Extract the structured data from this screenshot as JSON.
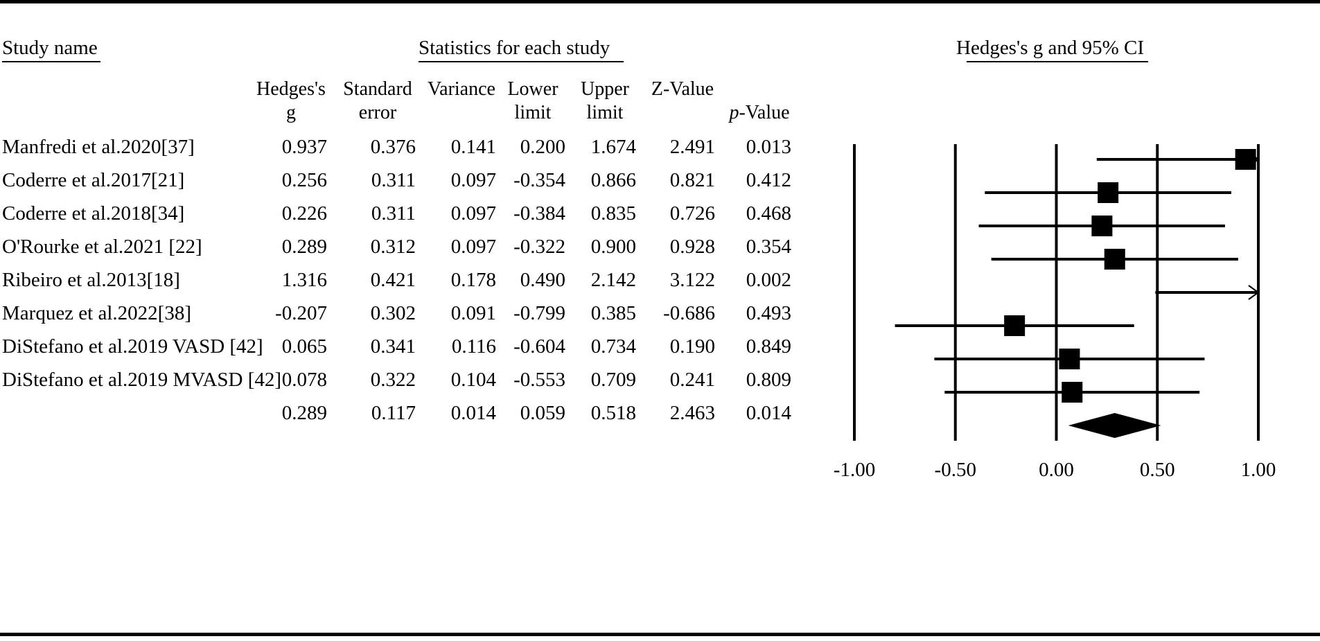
{
  "headers": {
    "study_name": "Study name",
    "statistics": "Statistics for each study",
    "plot_title": "Hedges's g and 95% CI"
  },
  "columns": [
    {
      "key": "g",
      "line1": "Hedges's",
      "line2": "g"
    },
    {
      "key": "se",
      "line1": "Standard",
      "line2": "error"
    },
    {
      "key": "var",
      "line1": "",
      "line2": "Variance"
    },
    {
      "key": "lower",
      "line1": "Lower",
      "line2": "limit"
    },
    {
      "key": "upper",
      "line1": "Upper",
      "line2": "limit"
    },
    {
      "key": "z",
      "line1": "",
      "line2": "Z-Value"
    },
    {
      "key": "p",
      "line1": "",
      "line2_italic": "p",
      "line2_rest": "-Value"
    }
  ],
  "studies": [
    {
      "name": "Manfredi et al.2020[37]",
      "g": "0.937",
      "se": "0.376",
      "var": "0.141",
      "lower": "0.200",
      "upper": "1.674",
      "z": "2.491",
      "p": "0.013"
    },
    {
      "name": "Coderre et al.2017[21]",
      "g": "0.256",
      "se": "0.311",
      "var": "0.097",
      "lower": "-0.354",
      "upper": "0.866",
      "z": "0.821",
      "p": "0.412"
    },
    {
      "name": "Coderre et al.2018[34]",
      "g": "0.226",
      "se": "0.311",
      "var": "0.097",
      "lower": "-0.384",
      "upper": "0.835",
      "z": "0.726",
      "p": "0.468"
    },
    {
      "name": "O'Rourke et al.2021 [22]",
      "g": "0.289",
      "se": "0.312",
      "var": "0.097",
      "lower": "-0.322",
      "upper": "0.900",
      "z": "0.928",
      "p": "0.354"
    },
    {
      "name": "Ribeiro et al.2013[18]",
      "g": "1.316",
      "se": "0.421",
      "var": "0.178",
      "lower": "0.490",
      "upper": "2.142",
      "z": "3.122",
      "p": "0.002"
    },
    {
      "name": "Marquez et al.2022[38]",
      "g": "-0.207",
      "se": "0.302",
      "var": "0.091",
      "lower": "-0.799",
      "upper": "0.385",
      "z": "-0.686",
      "p": "0.493"
    },
    {
      "name": "DiStefano et al.2019 VASD [42]",
      "g": "0.065",
      "se": "0.341",
      "var": "0.116",
      "lower": "-0.604",
      "upper": "0.734",
      "z": "0.190",
      "p": "0.849"
    },
    {
      "name": "DiStefano et al.2019 MVASD [42]",
      "g": "0.078",
      "se": "0.322",
      "var": "0.104",
      "lower": "-0.553",
      "upper": "0.709",
      "z": "0.241",
      "p": "0.809"
    }
  ],
  "summary": {
    "name": "",
    "g": "0.289",
    "se": "0.117",
    "var": "0.014",
    "lower": "0.059",
    "upper": "0.518",
    "z": "2.463",
    "p": "0.014"
  },
  "chart_data": {
    "type": "forest",
    "title": "Hedges's g and 95% CI",
    "xlim": [
      -1.0,
      1.0
    ],
    "xticks": [
      -1.0,
      -0.5,
      0.0,
      0.5,
      1.0
    ],
    "xtick_labels": [
      "-1.00",
      "-0.50",
      "0.00",
      "0.50",
      "1.00"
    ],
    "series": [
      {
        "name": "Manfredi et al.2020[37]",
        "g": 0.937,
        "lower": 0.2,
        "upper": 1.674
      },
      {
        "name": "Coderre et al.2017[21]",
        "g": 0.256,
        "lower": -0.354,
        "upper": 0.866
      },
      {
        "name": "Coderre et al.2018[34]",
        "g": 0.226,
        "lower": -0.384,
        "upper": 0.835
      },
      {
        "name": "O'Rourke et al.2021 [22]",
        "g": 0.289,
        "lower": -0.322,
        "upper": 0.9
      },
      {
        "name": "Ribeiro et al.2013[18]",
        "g": 1.316,
        "lower": 0.49,
        "upper": 2.142
      },
      {
        "name": "Marquez et al.2022[38]",
        "g": -0.207,
        "lower": -0.799,
        "upper": 0.385
      },
      {
        "name": "DiStefano et al.2019 VASD [42]",
        "g": 0.065,
        "lower": -0.604,
        "upper": 0.734
      },
      {
        "name": "DiStefano et al.2019 MVASD [42]",
        "g": 0.078,
        "lower": -0.553,
        "upper": 0.709
      }
    ],
    "summary": {
      "g": 0.289,
      "lower": 0.059,
      "upper": 0.518
    }
  }
}
